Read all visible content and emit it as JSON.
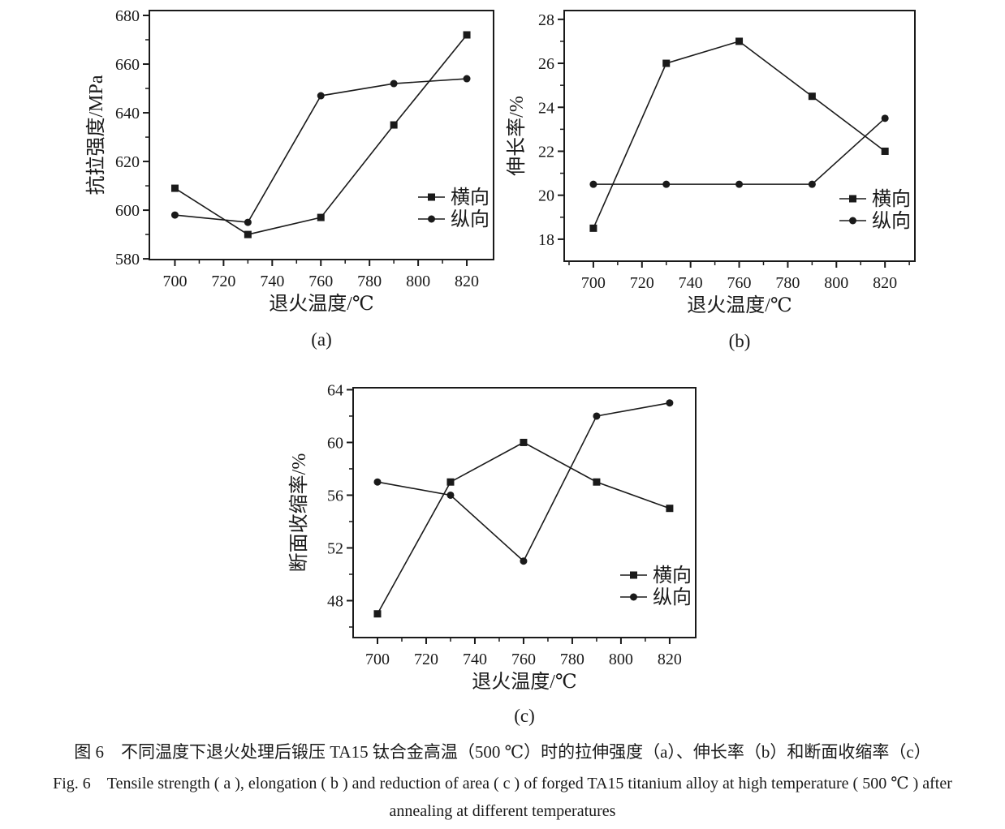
{
  "figure": {
    "background": "#ffffff",
    "ink_color": "#1a1a1a"
  },
  "chart_data": [
    {
      "id": "a",
      "type": "line",
      "panel_label": "(a)",
      "xlabel": "退火温度/℃",
      "ylabel": "抗拉强度/MPa",
      "x": [
        700,
        730,
        760,
        790,
        820
      ],
      "xticks": [
        700,
        720,
        740,
        760,
        780,
        800,
        820
      ],
      "yticks": [
        580,
        600,
        620,
        640,
        660,
        680
      ],
      "xlim": [
        689.5,
        831
      ],
      "ylim": [
        579.7,
        682
      ],
      "grid": false,
      "legend_position": "lower-right",
      "series": [
        {
          "name": "横向",
          "marker": "square",
          "values": [
            609,
            590,
            597,
            635,
            672
          ]
        },
        {
          "name": "纵向",
          "marker": "circle",
          "values": [
            598,
            595,
            647,
            652,
            654
          ]
        }
      ]
    },
    {
      "id": "b",
      "type": "line",
      "panel_label": "(b)",
      "xlabel": "退火温度/℃",
      "ylabel": "伸长率/%",
      "x": [
        700,
        730,
        760,
        790,
        820
      ],
      "xticks": [
        700,
        720,
        740,
        760,
        780,
        800,
        820
      ],
      "yticks": [
        18,
        20,
        22,
        24,
        26,
        28
      ],
      "xlim": [
        688,
        832.3
      ],
      "ylim": [
        17,
        28.4
      ],
      "grid": false,
      "legend_position": "lower-right",
      "series": [
        {
          "name": "横向",
          "marker": "square",
          "values": [
            18.5,
            26,
            27,
            24.5,
            22
          ]
        },
        {
          "name": "纵向",
          "marker": "circle",
          "values": [
            20.5,
            20.5,
            20.5,
            20.5,
            23.5
          ]
        }
      ]
    },
    {
      "id": "c",
      "type": "line",
      "panel_label": "(c)",
      "xlabel": "退火温度/℃",
      "ylabel": "断面收缩率/%",
      "x": [
        700,
        730,
        760,
        790,
        820
      ],
      "xticks": [
        700,
        720,
        740,
        760,
        780,
        800,
        820
      ],
      "yticks": [
        48,
        52,
        56,
        60,
        64
      ],
      "xlim": [
        690,
        830.7
      ],
      "ylim": [
        45.2,
        64.15
      ],
      "grid": false,
      "legend_position": "lower-right",
      "series": [
        {
          "name": "横向",
          "marker": "square",
          "values": [
            47,
            57,
            60,
            57,
            55
          ]
        },
        {
          "name": "纵向",
          "marker": "circle",
          "values": [
            57,
            56,
            51,
            62,
            63
          ]
        }
      ]
    }
  ],
  "caption": {
    "zh": "图 6　不同温度下退火处理后锻压 TA15 钛合金高温（500 ℃）时的拉伸强度（a）、伸长率（b）和断面收缩率（c）",
    "en_line1": "Fig. 6　Tensile strength ( a ), elongation ( b ) and reduction of area ( c ) of forged TA15 titanium alloy at high temperature ( 500 ℃ ) after",
    "en_line2": "annealing at different temperatures"
  }
}
